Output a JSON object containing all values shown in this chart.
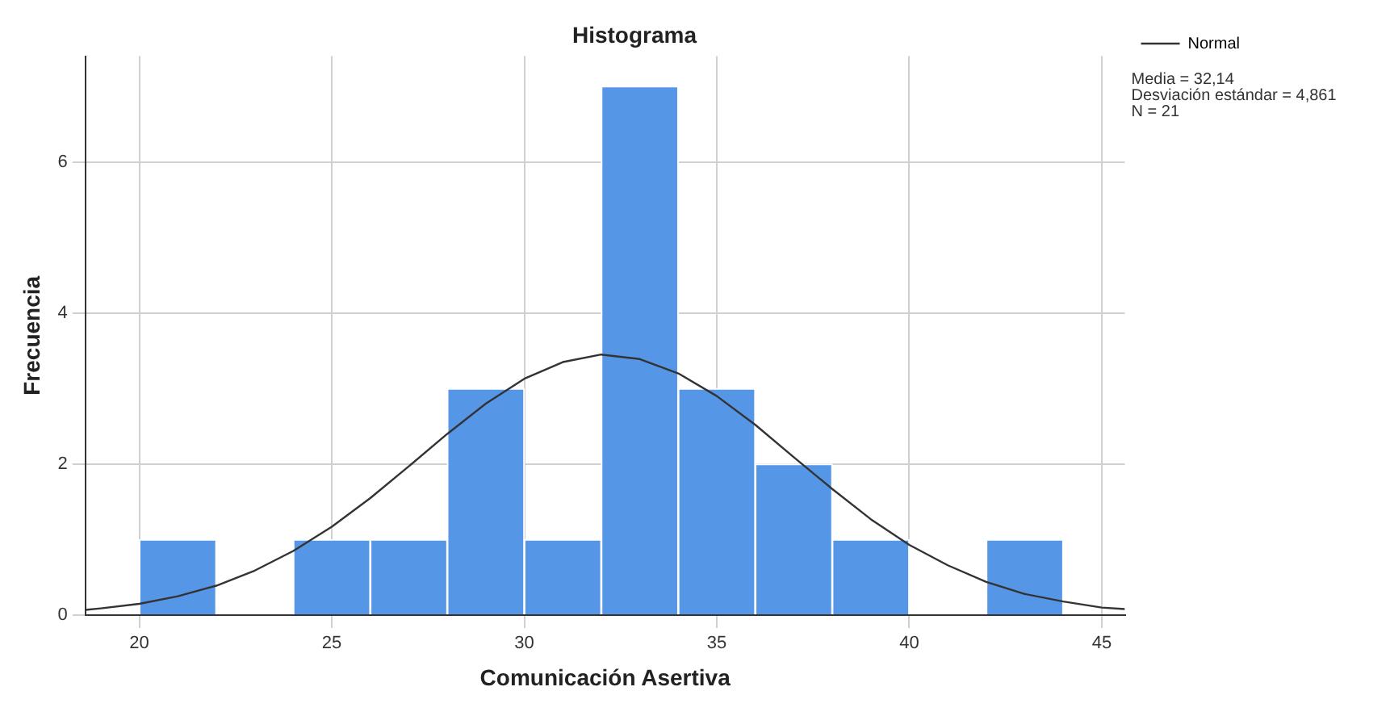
{
  "chart_data": {
    "type": "histogram",
    "title": "Histograma",
    "xlabel": "Comunicación Asertiva",
    "ylabel": "Frecuencia",
    "bins": [
      20,
      22,
      24,
      26,
      28,
      30,
      32,
      34,
      36,
      38,
      40,
      42,
      44
    ],
    "values": [
      1,
      0,
      1,
      1,
      3,
      1,
      7,
      3,
      2,
      1,
      0,
      1
    ],
    "color": "#5596e6",
    "series": [
      {
        "name": "Normal",
        "type": "line",
        "color": "#333333",
        "marker": "none",
        "x": [
          18.6,
          19,
          20,
          21,
          22,
          23,
          24,
          25,
          26,
          27,
          28,
          29,
          30,
          31,
          32,
          33,
          34,
          35,
          36,
          37,
          38,
          39,
          40,
          41,
          42,
          43,
          44,
          45,
          45.6
        ],
        "values": [
          0.07,
          0.09,
          0.15,
          0.25,
          0.39,
          0.59,
          0.85,
          1.17,
          1.55,
          1.97,
          2.4,
          2.8,
          3.13,
          3.35,
          3.45,
          3.39,
          3.2,
          2.9,
          2.52,
          2.09,
          1.67,
          1.27,
          0.93,
          0.66,
          0.44,
          0.28,
          0.18,
          0.1,
          0.08
        ]
      }
    ],
    "xlim": [
      18.6,
      45.6
    ],
    "xticks": [
      20,
      25,
      30,
      35,
      40,
      45
    ],
    "ylim": [
      0,
      7.4
    ],
    "yticks": [
      0,
      2,
      4,
      6
    ],
    "grid": true,
    "legend": "top right",
    "annotations": [
      "Media = 32,14",
      "Desviación estándar = 4,861",
      "N = 21"
    ]
  }
}
